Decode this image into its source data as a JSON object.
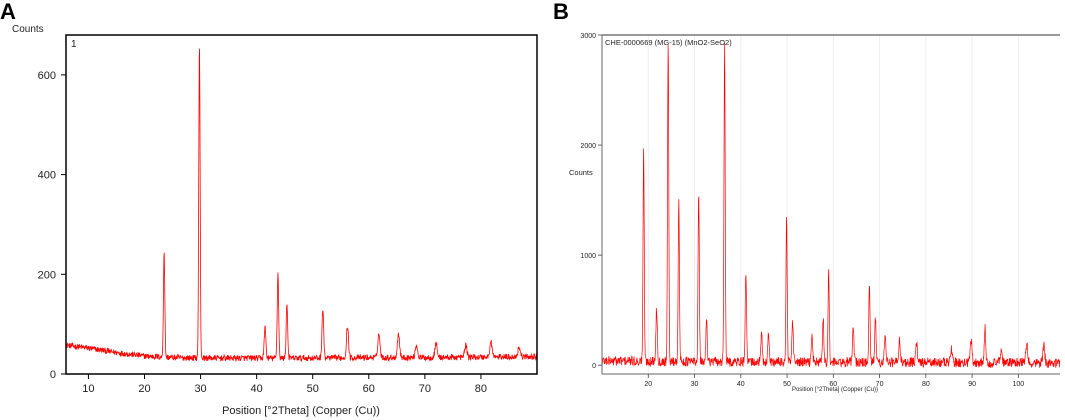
{
  "panels": {
    "A": {
      "letter": "A"
    },
    "B": {
      "letter": "B"
    }
  },
  "chart_data": [
    {
      "type": "line",
      "panel": "A",
      "title": "",
      "inner_label": "1",
      "ylabel": "Counts",
      "xlabel": "Position [°2Theta] (Copper (Cu))",
      "xlim": [
        6,
        90
      ],
      "ylim": [
        0,
        680
      ],
      "xticks": [
        10,
        20,
        30,
        40,
        50,
        60,
        70,
        80
      ],
      "yticks": [
        0,
        200,
        400,
        600
      ],
      "color": "#ff0000",
      "baseline": [
        [
          6,
          58
        ],
        [
          10,
          52
        ],
        [
          15,
          43
        ],
        [
          20,
          36
        ],
        [
          25,
          33
        ],
        [
          30,
          32
        ],
        [
          40,
          32
        ],
        [
          50,
          32
        ],
        [
          60,
          33
        ],
        [
          70,
          33
        ],
        [
          80,
          34
        ],
        [
          90,
          35
        ]
      ],
      "noise": 6,
      "peaks": [
        {
          "x": 23.5,
          "y": 248,
          "w": 0.12
        },
        {
          "x": 29.8,
          "y": 665,
          "w": 0.12
        },
        {
          "x": 41.5,
          "y": 93,
          "w": 0.15
        },
        {
          "x": 43.8,
          "y": 202,
          "w": 0.13
        },
        {
          "x": 45.4,
          "y": 143,
          "w": 0.13
        },
        {
          "x": 51.8,
          "y": 130,
          "w": 0.15
        },
        {
          "x": 56.2,
          "y": 95,
          "w": 0.18
        },
        {
          "x": 61.8,
          "y": 80,
          "w": 0.2
        },
        {
          "x": 65.3,
          "y": 80,
          "w": 0.2
        },
        {
          "x": 68.5,
          "y": 58,
          "w": 0.2
        },
        {
          "x": 72.0,
          "y": 62,
          "w": 0.2
        },
        {
          "x": 77.3,
          "y": 58,
          "w": 0.2
        },
        {
          "x": 81.8,
          "y": 64,
          "w": 0.2
        },
        {
          "x": 86.8,
          "y": 55,
          "w": 0.2
        }
      ]
    },
    {
      "type": "line",
      "panel": "B",
      "title": "CHE-0000669 (MG-15) (MnO2-SeO2)",
      "ylabel": "Counts",
      "xlabel": "Position [°2Theta] (Copper (Cu))",
      "xlim": [
        10,
        109
      ],
      "ylim": [
        -80,
        3000
      ],
      "xticks": [
        20,
        30,
        40,
        50,
        60,
        70,
        80,
        90,
        100
      ],
      "yticks": [
        0,
        1000,
        2000,
        3000
      ],
      "color": "#ff0000",
      "baseline": [
        [
          10,
          40
        ],
        [
          20,
          35
        ],
        [
          40,
          30
        ],
        [
          60,
          25
        ],
        [
          80,
          25
        ],
        [
          109,
          20
        ]
      ],
      "noise": 45,
      "peaks": [
        {
          "x": 19.0,
          "y": 1950,
          "w": 0.13
        },
        {
          "x": 21.8,
          "y": 520,
          "w": 0.15
        },
        {
          "x": 24.3,
          "y": 2950,
          "w": 0.13
        },
        {
          "x": 26.6,
          "y": 1530,
          "w": 0.13
        },
        {
          "x": 30.9,
          "y": 1600,
          "w": 0.13
        },
        {
          "x": 32.6,
          "y": 420,
          "w": 0.15
        },
        {
          "x": 36.5,
          "y": 2920,
          "w": 0.13
        },
        {
          "x": 41.1,
          "y": 860,
          "w": 0.13
        },
        {
          "x": 44.5,
          "y": 280,
          "w": 0.15
        },
        {
          "x": 46.0,
          "y": 300,
          "w": 0.15
        },
        {
          "x": 49.9,
          "y": 1350,
          "w": 0.13
        },
        {
          "x": 51.2,
          "y": 380,
          "w": 0.15
        },
        {
          "x": 55.4,
          "y": 280,
          "w": 0.15
        },
        {
          "x": 57.8,
          "y": 430,
          "w": 0.15
        },
        {
          "x": 59.0,
          "y": 860,
          "w": 0.13
        },
        {
          "x": 64.3,
          "y": 380,
          "w": 0.15
        },
        {
          "x": 67.8,
          "y": 730,
          "w": 0.13
        },
        {
          "x": 69.1,
          "y": 420,
          "w": 0.15
        },
        {
          "x": 71.2,
          "y": 250,
          "w": 0.18
        },
        {
          "x": 74.3,
          "y": 230,
          "w": 0.18
        },
        {
          "x": 78.0,
          "y": 180,
          "w": 0.2
        },
        {
          "x": 85.5,
          "y": 150,
          "w": 0.2
        },
        {
          "x": 89.8,
          "y": 230,
          "w": 0.2
        },
        {
          "x": 92.8,
          "y": 340,
          "w": 0.15
        },
        {
          "x": 96.3,
          "y": 150,
          "w": 0.2
        },
        {
          "x": 101.8,
          "y": 190,
          "w": 0.2
        },
        {
          "x": 105.5,
          "y": 180,
          "w": 0.2
        }
      ]
    }
  ]
}
